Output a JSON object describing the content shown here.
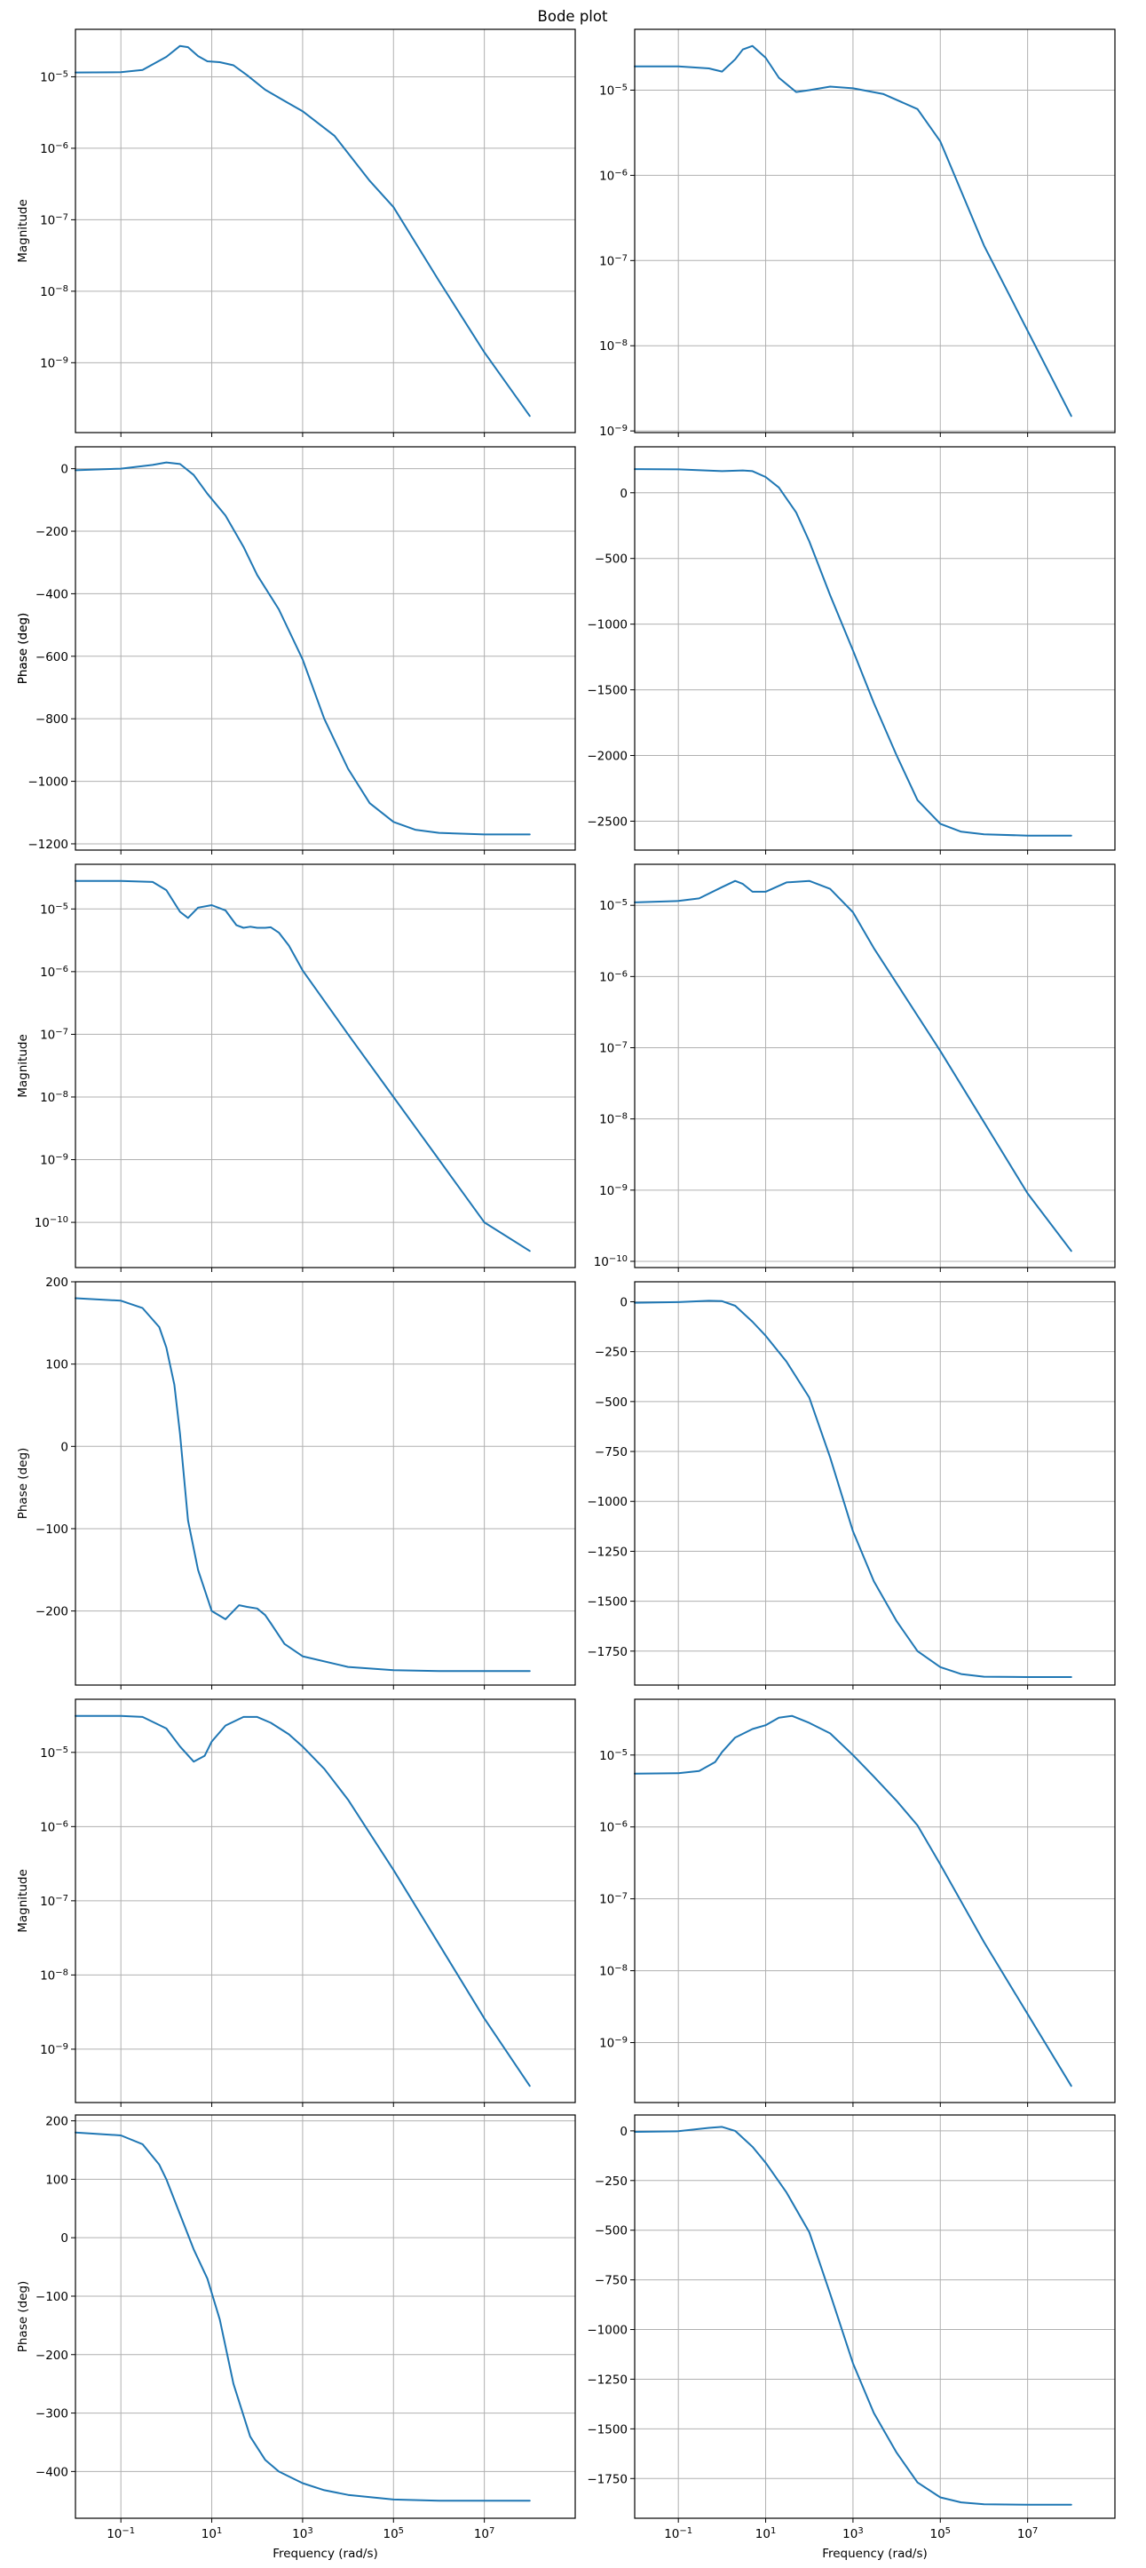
{
  "figure": {
    "title": "Bode plot",
    "xlabel": "Frequency (rad/s)",
    "line_color": "#1f77b4",
    "grid_color": "#b0b0b0"
  },
  "chart_data": [
    {
      "type": "line",
      "row": 0,
      "col": 0,
      "title": "",
      "xlabel": "",
      "ylabel": "Magnitude",
      "xscale": "log",
      "yscale": "log",
      "xlim": [
        0.01,
        1000000000
      ],
      "grid": true,
      "x": [
        0.01,
        0.1,
        0.3,
        1,
        2,
        3,
        5,
        8,
        15,
        30,
        60,
        150,
        400,
        1000,
        5000,
        30000,
        100000,
        1000000,
        10000000,
        100000000
      ],
      "y": [
        1.15e-05,
        1.16e-05,
        1.25e-05,
        1.9e-05,
        2.7e-05,
        2.6e-05,
        1.95e-05,
        1.65e-05,
        1.6e-05,
        1.45e-05,
        1.05e-05,
        6.6e-06,
        4.6e-06,
        3.3e-06,
        1.5e-06,
        3.5e-07,
        1.5e-07,
        1.4e-08,
        1.4e-09,
        1.8e-10
      ]
    },
    {
      "type": "line",
      "row": 1,
      "col": 0,
      "title": "",
      "xlabel": "",
      "ylabel": "Phase (deg)",
      "xscale": "log",
      "yscale": "linear",
      "xlim": [
        0.01,
        1000000000
      ],
      "ylim": [
        -1220,
        70
      ],
      "grid": true,
      "x": [
        0.01,
        0.1,
        0.5,
        1,
        2,
        4,
        8,
        20,
        50,
        100,
        300,
        1000,
        3000,
        10000,
        30000,
        100000,
        300000,
        1000000,
        10000000,
        100000000
      ],
      "y": [
        -5,
        0,
        12,
        20,
        15,
        -20,
        -80,
        -150,
        -250,
        -340,
        -450,
        -610,
        -800,
        -960,
        -1070,
        -1130,
        -1155,
        -1165,
        -1170,
        -1170
      ]
    },
    {
      "type": "line",
      "row": 0,
      "col": 1,
      "title": "",
      "xlabel": "",
      "ylabel": "",
      "xscale": "log",
      "yscale": "log",
      "xlim": [
        0.01,
        1000000000
      ],
      "grid": true,
      "x": [
        0.01,
        0.1,
        0.5,
        1,
        2,
        3,
        5,
        10,
        20,
        50,
        100,
        300,
        1000,
        5000,
        30000,
        100000,
        1000000,
        10000000,
        100000000
      ],
      "y": [
        1.9e-05,
        1.9e-05,
        1.8e-05,
        1.65e-05,
        2.3e-05,
        3e-05,
        3.3e-05,
        2.4e-05,
        1.4e-05,
        9.5e-06,
        1e-05,
        1.1e-05,
        1.05e-05,
        9e-06,
        6e-06,
        2.5e-06,
        1.5e-07,
        1.5e-08,
        1.5e-09
      ]
    },
    {
      "type": "line",
      "row": 1,
      "col": 1,
      "title": "",
      "xlabel": "",
      "ylabel": "Phase (deg)",
      "xscale": "log",
      "yscale": "linear",
      "xlim": [
        0.01,
        1000000000
      ],
      "ylim": [
        -2720,
        350
      ],
      "grid": true,
      "x": [
        0.01,
        0.1,
        1,
        3,
        5,
        10,
        20,
        50,
        100,
        300,
        1000,
        3000,
        10000,
        30000,
        100000,
        300000,
        1000000,
        10000000,
        100000000
      ],
      "y": [
        180,
        178,
        165,
        170,
        165,
        120,
        40,
        -150,
        -370,
        -780,
        -1200,
        -1600,
        -2000,
        -2340,
        -2520,
        -2580,
        -2600,
        -2610,
        -2610
      ]
    },
    {
      "type": "line",
      "row": 2,
      "col": 0,
      "title": "",
      "xlabel": "",
      "ylabel": "Magnitude",
      "xscale": "log",
      "yscale": "log",
      "xlim": [
        0.01,
        1000000000
      ],
      "grid": true,
      "x": [
        0.01,
        0.1,
        0.5,
        1,
        2,
        3,
        5,
        10,
        20,
        35,
        50,
        70,
        100,
        150,
        200,
        300,
        500,
        1000,
        10000,
        100000,
        1000000,
        10000000,
        100000000
      ],
      "y": [
        2.8e-05,
        2.8e-05,
        2.7e-05,
        2e-05,
        9e-06,
        7.2e-06,
        1.05e-05,
        1.15e-05,
        9.5e-06,
        5.5e-06,
        5e-06,
        5.2e-06,
        5e-06,
        5e-06,
        5.1e-06,
        4.2e-06,
        2.6e-06,
        1.05e-06,
        1e-07,
        1e-08,
        1e-09,
        1e-10,
        3.5e-11
      ]
    },
    {
      "type": "line",
      "row": 3,
      "col": 0,
      "title": "",
      "xlabel": "",
      "ylabel": "Phase (deg)",
      "xscale": "log",
      "yscale": "linear",
      "xlim": [
        0.01,
        1000000000
      ],
      "ylim": [
        -290,
        200
      ],
      "grid": true,
      "x": [
        0.01,
        0.1,
        0.3,
        0.7,
        1,
        1.5,
        2,
        3,
        5,
        10,
        20,
        30,
        40,
        60,
        100,
        150,
        200,
        400,
        1000,
        10000,
        100000,
        1000000,
        10000000,
        100000000
      ],
      "y": [
        180,
        177,
        168,
        145,
        120,
        75,
        15,
        -90,
        -150,
        -200,
        -210,
        -200,
        -193,
        -195,
        -197,
        -205,
        -215,
        -240,
        -255,
        -268,
        -272,
        -273,
        -273,
        -273
      ]
    },
    {
      "type": "line",
      "row": 2,
      "col": 1,
      "title": "",
      "xlabel": "",
      "ylabel": "",
      "xscale": "log",
      "yscale": "log",
      "xlim": [
        0.01,
        1000000000
      ],
      "grid": true,
      "x": [
        0.01,
        0.1,
        0.3,
        1,
        2,
        3,
        5,
        10,
        30,
        100,
        300,
        1000,
        3000,
        10000,
        100000,
        1000000,
        10000000,
        100000000
      ],
      "y": [
        1.1e-05,
        1.15e-05,
        1.25e-05,
        1.8e-05,
        2.2e-05,
        2e-05,
        1.55e-05,
        1.55e-05,
        2.1e-05,
        2.2e-05,
        1.7e-05,
        8e-06,
        2.5e-06,
        8e-07,
        9e-08,
        9e-09,
        9e-10,
        1.4e-10
      ]
    },
    {
      "type": "line",
      "row": 3,
      "col": 1,
      "title": "",
      "xlabel": "",
      "ylabel": "",
      "xscale": "log",
      "yscale": "linear",
      "xlim": [
        0.01,
        1000000000
      ],
      "ylim": [
        -1920,
        100
      ],
      "grid": true,
      "x": [
        0.01,
        0.1,
        0.5,
        1,
        2,
        5,
        10,
        30,
        100,
        300,
        1000,
        3000,
        10000,
        30000,
        100000,
        300000,
        1000000,
        10000000,
        100000000
      ],
      "y": [
        -5,
        -2,
        5,
        3,
        -20,
        -100,
        -170,
        -300,
        -480,
        -780,
        -1150,
        -1400,
        -1600,
        -1750,
        -1830,
        -1865,
        -1878,
        -1880,
        -1880
      ]
    },
    {
      "type": "line",
      "row": 4,
      "col": 0,
      "title": "",
      "xlabel": "",
      "ylabel": "Magnitude",
      "xscale": "log",
      "yscale": "log",
      "xlim": [
        0.01,
        1000000000
      ],
      "grid": true,
      "x": [
        0.01,
        0.1,
        0.3,
        1,
        2,
        4,
        7,
        10,
        20,
        50,
        100,
        200,
        500,
        1000,
        3000,
        10000,
        100000,
        1000000,
        10000000,
        100000000
      ],
      "y": [
        3.1e-05,
        3.1e-05,
        3e-05,
        2.1e-05,
        1.2e-05,
        7.5e-06,
        9e-06,
        1.4e-05,
        2.3e-05,
        3e-05,
        3e-05,
        2.5e-05,
        1.75e-05,
        1.2e-05,
        6e-06,
        2.3e-06,
        2.6e-07,
        2.6e-08,
        2.6e-09,
        3.2e-10
      ]
    },
    {
      "type": "line",
      "row": 5,
      "col": 0,
      "title": "",
      "xlabel": "Frequency (rad/s)",
      "ylabel": "Phase (deg)",
      "xscale": "log",
      "yscale": "linear",
      "xlim": [
        0.01,
        1000000000
      ],
      "ylim": [
        -480,
        210
      ],
      "grid": true,
      "x": [
        0.01,
        0.1,
        0.3,
        0.7,
        1,
        2,
        4,
        8,
        15,
        30,
        70,
        150,
        300,
        1000,
        3000,
        10000,
        100000,
        1000000,
        10000000,
        100000000
      ],
      "y": [
        180,
        175,
        160,
        125,
        100,
        40,
        -20,
        -70,
        -140,
        -250,
        -340,
        -380,
        -400,
        -420,
        -432,
        -440,
        -448,
        -450,
        -450,
        -450
      ]
    },
    {
      "type": "line",
      "row": 4,
      "col": 1,
      "title": "",
      "xlabel": "",
      "ylabel": "",
      "xscale": "log",
      "yscale": "log",
      "xlim": [
        0.01,
        1000000000
      ],
      "grid": true,
      "x": [
        0.01,
        0.1,
        0.3,
        0.7,
        1,
        2,
        5,
        10,
        20,
        40,
        100,
        300,
        1000,
        3000,
        10000,
        30000,
        100000,
        1000000,
        10000000,
        100000000
      ],
      "y": [
        5.5e-06,
        5.6e-06,
        6e-06,
        8e-06,
        1.1e-05,
        1.75e-05,
        2.3e-05,
        2.6e-05,
        3.3e-05,
        3.5e-05,
        2.8e-05,
        2e-05,
        1e-05,
        5e-06,
        2.3e-06,
        1.05e-06,
        3e-07,
        2.5e-08,
        2.5e-09,
        2.5e-10
      ]
    },
    {
      "type": "line",
      "row": 5,
      "col": 1,
      "title": "",
      "xlabel": "Frequency (rad/s)",
      "ylabel": "",
      "xscale": "log",
      "yscale": "linear",
      "xlim": [
        0.01,
        1000000000
      ],
      "ylim": [
        -1950,
        80
      ],
      "grid": true,
      "x": [
        0.01,
        0.1,
        0.5,
        1,
        2,
        5,
        10,
        30,
        100,
        300,
        1000,
        3000,
        10000,
        30000,
        100000,
        300000,
        1000000,
        10000000,
        100000000
      ],
      "y": [
        -5,
        -2,
        15,
        20,
        0,
        -80,
        -160,
        -310,
        -510,
        -820,
        -1170,
        -1420,
        -1620,
        -1770,
        -1845,
        -1870,
        -1880,
        -1882,
        -1882
      ]
    }
  ]
}
